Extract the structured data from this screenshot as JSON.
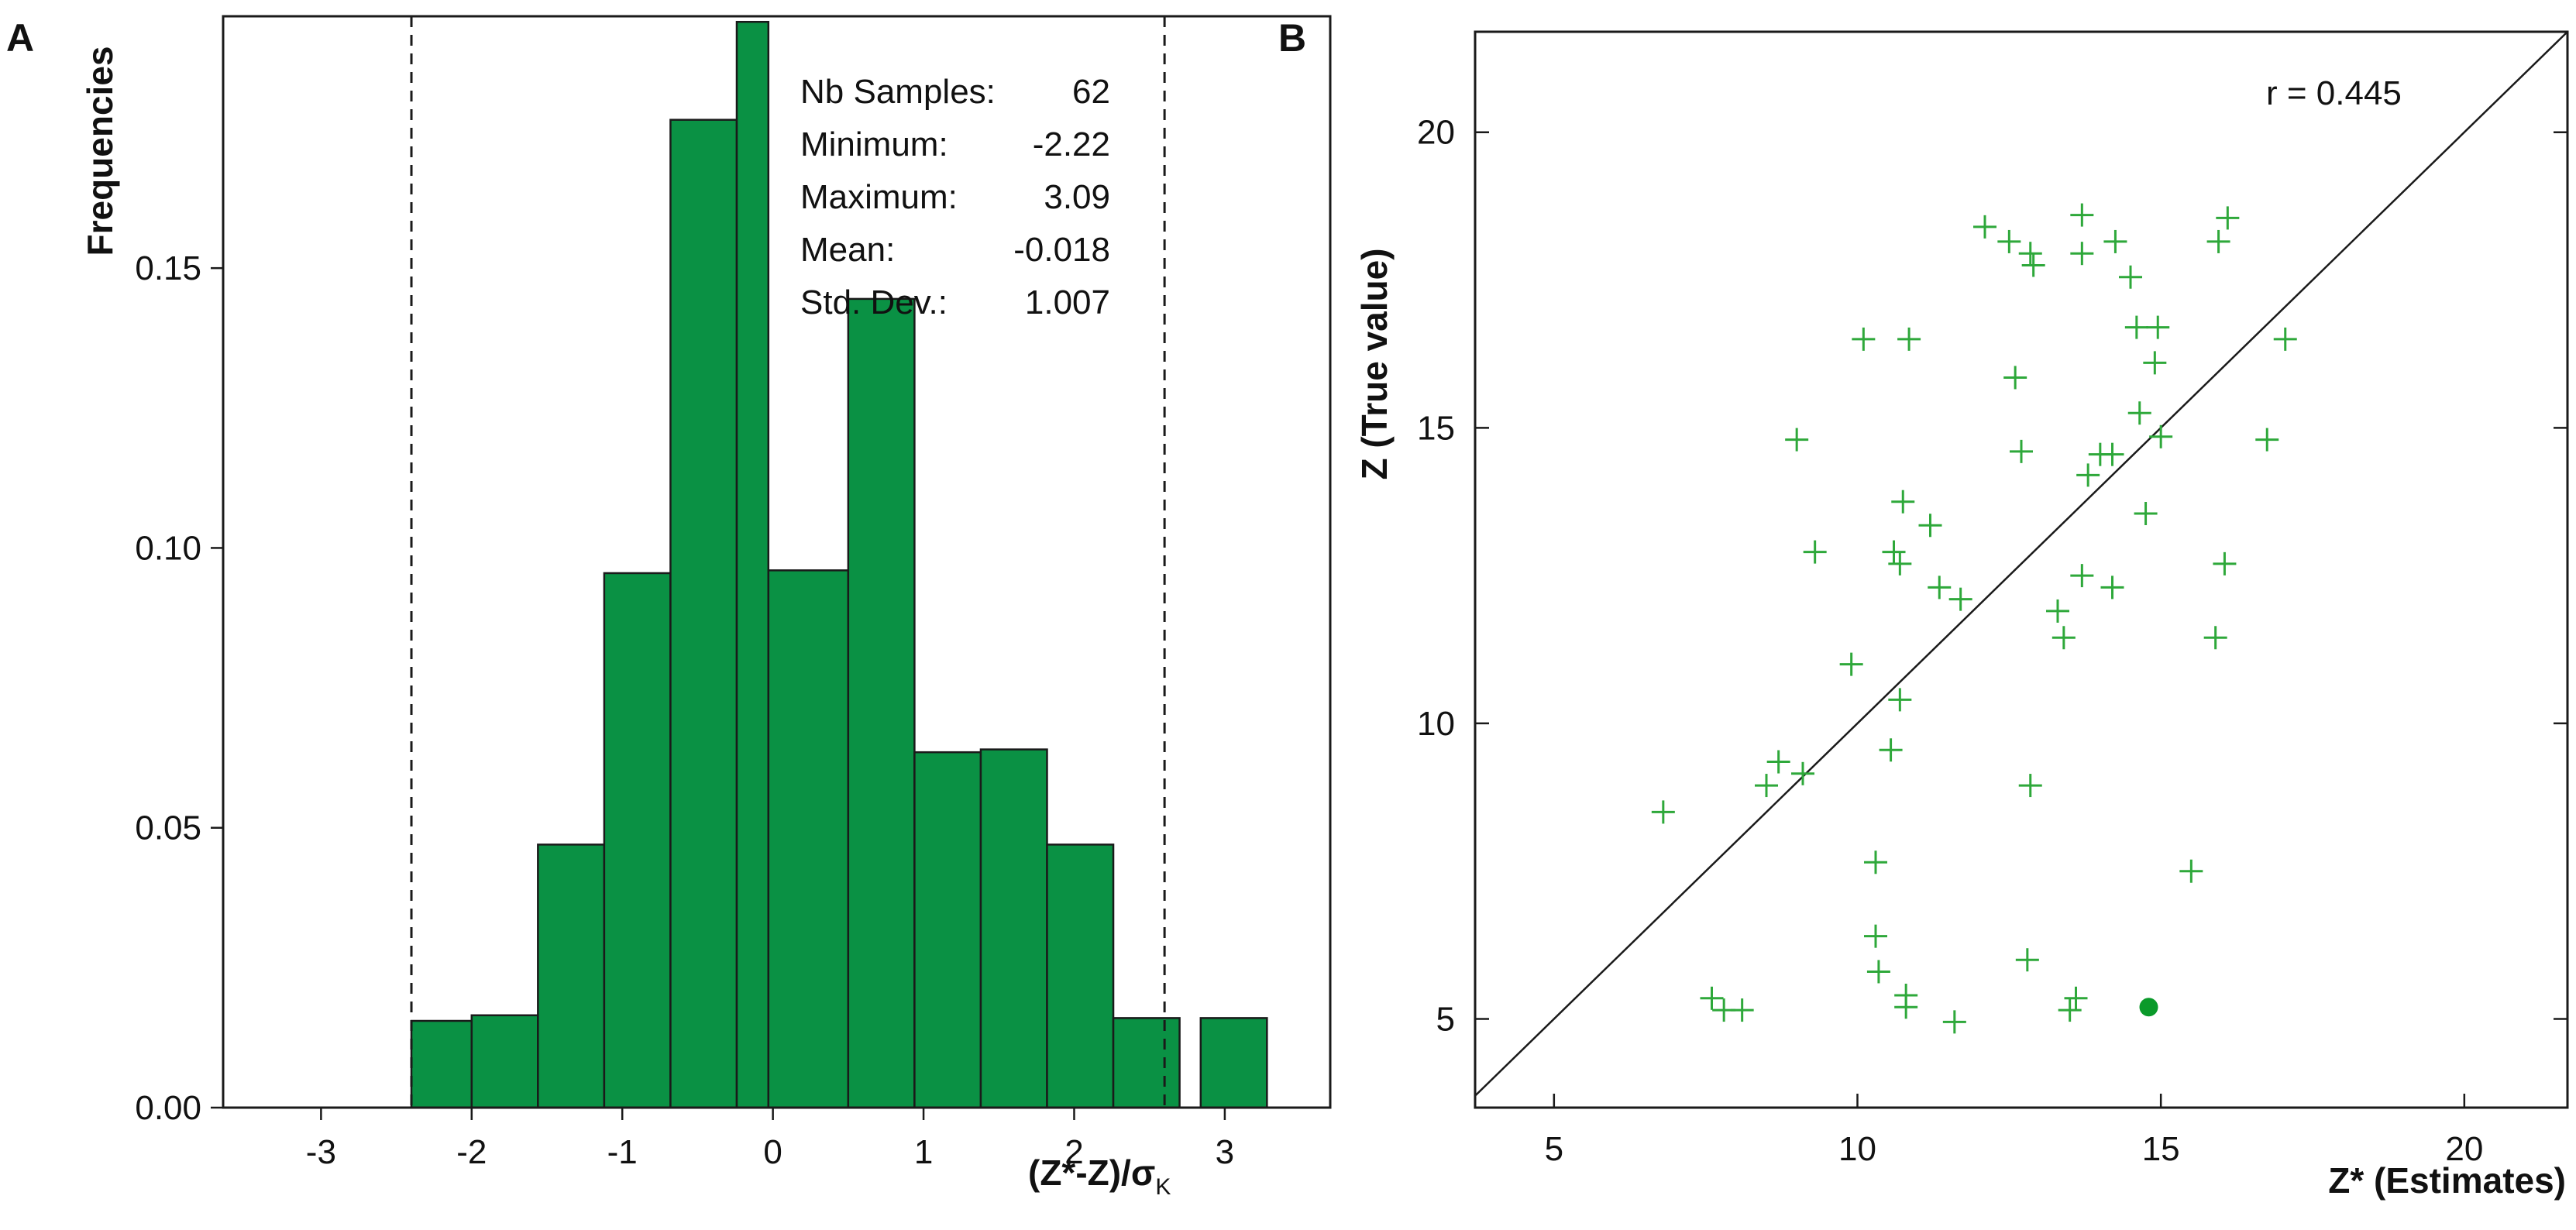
{
  "chart_data": [
    {
      "panel": "A",
      "type": "bar",
      "xlabel_main": "(Z*-Z)/σ",
      "xlabel_sub": "K",
      "ylabel": "Frequencies",
      "xlim": [
        -3.65,
        3.7
      ],
      "ylim": [
        0,
        0.195
      ],
      "xticks": [
        -3,
        -2,
        -1,
        0,
        1,
        2,
        3
      ],
      "xtick_labels": [
        "-3",
        "-2",
        "-1",
        "0",
        "1",
        "2",
        "3"
      ],
      "yticks": [
        0.0,
        0.05,
        0.1,
        0.15
      ],
      "ytick_labels": [
        "0.00",
        "0.05",
        "0.10",
        "0.15"
      ],
      "bins": [
        {
          "x0": -2.4,
          "x1": -2.0,
          "value": 0.0155
        },
        {
          "x0": -2.0,
          "x1": -1.56,
          "value": 0.0165
        },
        {
          "x0": -1.56,
          "x1": -1.12,
          "value": 0.047
        },
        {
          "x0": -1.12,
          "x1": -0.68,
          "value": 0.0955
        },
        {
          "x0": -0.68,
          "x1": -0.24,
          "value": 0.1765
        },
        {
          "x0": -0.24,
          "x1": -0.03,
          "value": 0.194
        },
        {
          "x0": -0.03,
          "x1": 0.5,
          "value": 0.096
        },
        {
          "x0": 0.5,
          "x1": 0.94,
          "value": 0.1445
        },
        {
          "x0": 0.94,
          "x1": 1.38,
          "value": 0.0635
        },
        {
          "x0": 1.38,
          "x1": 1.82,
          "value": 0.064
        },
        {
          "x0": 1.82,
          "x1": 2.26,
          "value": 0.047
        },
        {
          "x0": 2.26,
          "x1": 2.7,
          "value": 0.016
        },
        {
          "x0": 2.84,
          "x1": 3.28,
          "value": 0.016
        }
      ],
      "dashed_lines_x": [
        -2.4,
        2.6
      ],
      "stats": [
        {
          "label": "Nb Samples:",
          "value": "62"
        },
        {
          "label": "Minimum:",
          "value": "-2.22"
        },
        {
          "label": "Maximum:",
          "value": "3.09"
        },
        {
          "label": "Mean:",
          "value": "-0.018"
        },
        {
          "label": "Std. Dev.:",
          "value": "1.007"
        }
      ],
      "bar_color": "#0a9144"
    },
    {
      "panel": "B",
      "type": "scatter",
      "xlabel": "Z* (Estimates)",
      "ylabel": "Z (True value)",
      "xlim": [
        3.7,
        21.7
      ],
      "ylim": [
        3.5,
        21.7
      ],
      "xticks": [
        5,
        10,
        15,
        20
      ],
      "yticks": [
        5,
        10,
        15,
        20
      ],
      "annotation": "r = 0.445",
      "marker_color": "#2ea83a",
      "points": [
        {
          "x": 6.8,
          "y": 8.5
        },
        {
          "x": 7.6,
          "y": 5.35
        },
        {
          "x": 7.8,
          "y": 5.15
        },
        {
          "x": 8.1,
          "y": 5.15
        },
        {
          "x": 8.5,
          "y": 8.95
        },
        {
          "x": 8.7,
          "y": 9.35
        },
        {
          "x": 9.0,
          "y": 14.8
        },
        {
          "x": 9.1,
          "y": 9.15
        },
        {
          "x": 9.3,
          "y": 12.9
        },
        {
          "x": 9.9,
          "y": 11.0
        },
        {
          "x": 10.1,
          "y": 16.5
        },
        {
          "x": 10.3,
          "y": 7.65
        },
        {
          "x": 10.3,
          "y": 6.4
        },
        {
          "x": 10.35,
          "y": 5.8
        },
        {
          "x": 10.55,
          "y": 9.55
        },
        {
          "x": 10.6,
          "y": 12.9
        },
        {
          "x": 10.7,
          "y": 10.4
        },
        {
          "x": 10.7,
          "y": 12.7
        },
        {
          "x": 10.75,
          "y": 13.75
        },
        {
          "x": 10.8,
          "y": 5.4
        },
        {
          "x": 10.8,
          "y": 5.2
        },
        {
          "x": 10.85,
          "y": 16.5
        },
        {
          "x": 11.2,
          "y": 13.35
        },
        {
          "x": 11.35,
          "y": 12.3
        },
        {
          "x": 11.6,
          "y": 4.95
        },
        {
          "x": 11.7,
          "y": 12.1
        },
        {
          "x": 12.1,
          "y": 18.4
        },
        {
          "x": 12.5,
          "y": 18.15
        },
        {
          "x": 12.6,
          "y": 15.85
        },
        {
          "x": 12.7,
          "y": 14.6
        },
        {
          "x": 12.8,
          "y": 6.0
        },
        {
          "x": 12.85,
          "y": 8.95
        },
        {
          "x": 12.85,
          "y": 17.95
        },
        {
          "x": 12.9,
          "y": 17.75
        },
        {
          "x": 13.3,
          "y": 11.9
        },
        {
          "x": 13.4,
          "y": 11.45
        },
        {
          "x": 13.5,
          "y": 5.15
        },
        {
          "x": 13.6,
          "y": 5.35
        },
        {
          "x": 13.7,
          "y": 18.6
        },
        {
          "x": 13.7,
          "y": 17.95
        },
        {
          "x": 13.7,
          "y": 12.5
        },
        {
          "x": 13.8,
          "y": 14.2
        },
        {
          "x": 14.0,
          "y": 14.55
        },
        {
          "x": 14.2,
          "y": 14.55
        },
        {
          "x": 14.2,
          "y": 12.3
        },
        {
          "x": 14.25,
          "y": 18.15
        },
        {
          "x": 14.5,
          "y": 17.55
        },
        {
          "x": 14.6,
          "y": 16.7
        },
        {
          "x": 14.65,
          "y": 15.25
        },
        {
          "x": 14.75,
          "y": 13.55
        },
        {
          "x": 14.9,
          "y": 16.1
        },
        {
          "x": 14.95,
          "y": 16.7
        },
        {
          "x": 15.0,
          "y": 14.85
        },
        {
          "x": 15.5,
          "y": 7.5
        },
        {
          "x": 15.9,
          "y": 11.45
        },
        {
          "x": 15.95,
          "y": 18.15
        },
        {
          "x": 16.05,
          "y": 12.7
        },
        {
          "x": 16.1,
          "y": 18.55
        },
        {
          "x": 16.75,
          "y": 14.8
        },
        {
          "x": 17.05,
          "y": 16.5
        }
      ],
      "highlight_point": {
        "x": 14.8,
        "y": 5.2
      }
    }
  ]
}
